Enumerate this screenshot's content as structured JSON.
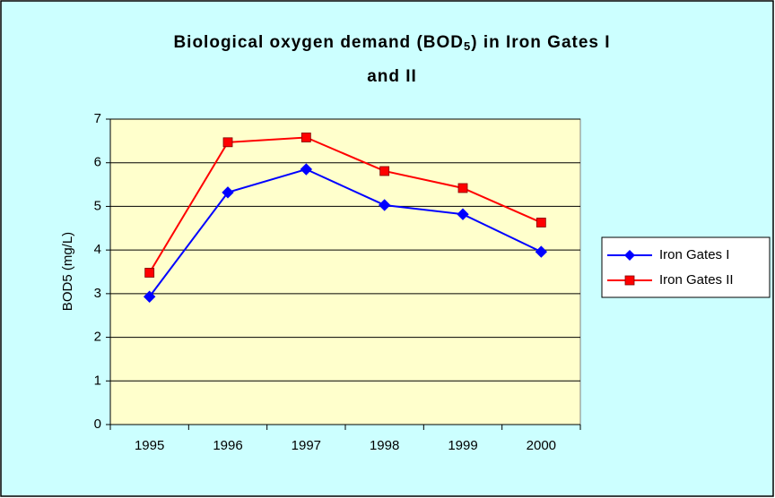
{
  "chart_data": {
    "type": "line",
    "title": [
      "Biological oxygen demand (BOD",
      "5",
      ") in Iron Gates I",
      "and II"
    ],
    "y_label": "BOD5 (mg/L)",
    "categories": [
      "1995",
      "1996",
      "1997",
      "1998",
      "1999",
      "2000"
    ],
    "series": [
      {
        "name": "Iron Gates I",
        "color": "#0000ff",
        "marker": "diamond",
        "values": [
          2.93,
          5.32,
          5.85,
          5.03,
          4.82,
          3.96
        ]
      },
      {
        "name": "Iron Gates II",
        "color": "#ff0000",
        "marker": "square",
        "values": [
          3.48,
          6.47,
          6.58,
          5.81,
          5.42,
          4.63
        ]
      }
    ],
    "ylim": [
      0,
      7
    ],
    "yticks": [
      0,
      1,
      2,
      3,
      4,
      5,
      6,
      7
    ],
    "grid": true,
    "legend": "right"
  }
}
